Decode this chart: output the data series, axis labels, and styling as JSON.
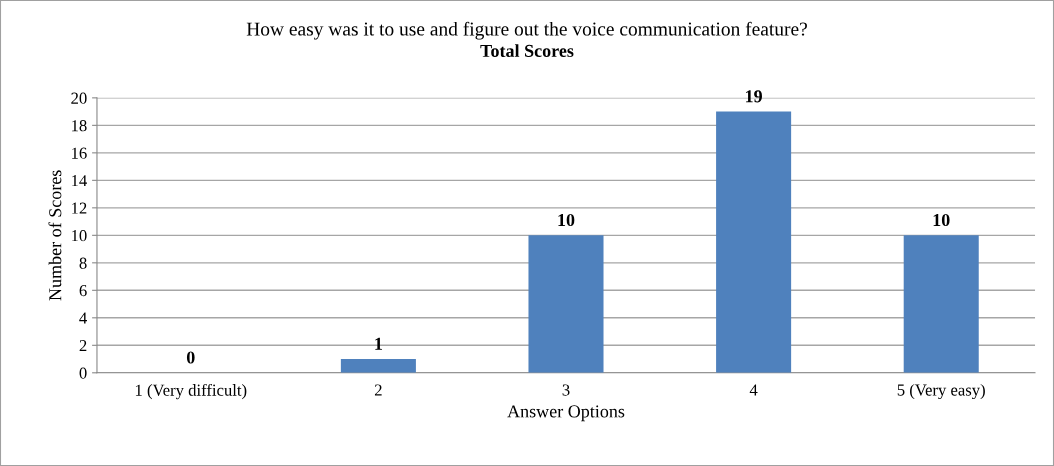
{
  "chart_data": {
    "type": "bar",
    "title": "How easy was it to use and figure out the voice communication feature?",
    "subtitle": "Total Scores",
    "xlabel": "Answer Options",
    "ylabel": "Number of Scores",
    "categories": [
      "1 (Very difficult)",
      "2",
      "3",
      "4",
      "5 (Very easy)"
    ],
    "values": [
      0,
      1,
      10,
      19,
      10
    ],
    "color": "#4f81bd",
    "ylim": [
      0,
      20
    ],
    "yticks": [
      0,
      2,
      4,
      6,
      8,
      10,
      12,
      14,
      16,
      18,
      20
    ],
    "grid": "y",
    "data_labels": true
  }
}
